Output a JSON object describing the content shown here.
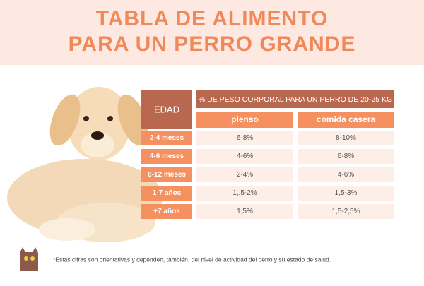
{
  "header": {
    "title": [
      "TABLA DE ALIMENTO",
      "PARA UN PERRO GRANDE"
    ]
  },
  "table": {
    "corner": "EDAD",
    "group_header": "% DE PESO CORPORAL PARA UN PERRO DE 20-25 KG",
    "columns": [
      "pienso",
      "comida casera"
    ],
    "rows": [
      [
        "2-4 meses",
        "6-8%",
        "8-10%"
      ],
      [
        "4-6 meses",
        "4-6%",
        "6-8%"
      ],
      [
        "6-12 meses",
        "2-4%",
        "4-6%"
      ],
      [
        "1-7 años",
        "1,,5-2%",
        "1,5-3%"
      ],
      [
        "+7 años",
        "1,5%",
        "1,5-2,5%"
      ]
    ]
  },
  "footnote": "*Estas cifras son orientativas y dependen, también, del nivel de actividad del perro y su estado de salud."
}
